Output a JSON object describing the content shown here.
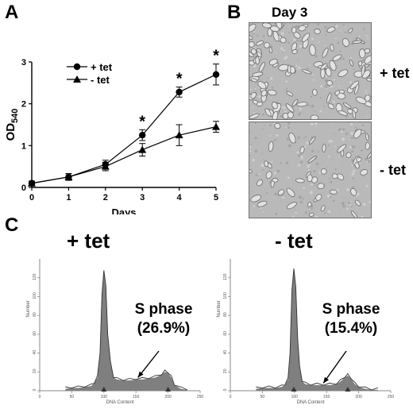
{
  "panels": {
    "a": {
      "letter": "A"
    },
    "b": {
      "letter": "B",
      "title": "Day 3",
      "top_label": "+ tet",
      "bottom_label": "- tet"
    },
    "c": {
      "letter": "C",
      "left_title": "+ tet",
      "right_title": "- tet"
    }
  },
  "chart_data": [
    {
      "type": "line",
      "xlabel": "Days",
      "ylabel": "OD",
      "ylabel_subscript": "540",
      "x": [
        0,
        1,
        2,
        3,
        4,
        5
      ],
      "xlim": [
        0,
        5
      ],
      "ylim": [
        0,
        3
      ],
      "xticks": [
        0,
        1,
        2,
        3,
        4,
        5
      ],
      "yticks": [
        0,
        1,
        2,
        3
      ],
      "grid": false,
      "legend_position": "top-left",
      "series": [
        {
          "name": "+ tet",
          "marker": "circle",
          "values": [
            0.1,
            0.25,
            0.55,
            1.25,
            2.28,
            2.7
          ],
          "errors": [
            0.05,
            0.08,
            0.1,
            0.13,
            0.12,
            0.25
          ]
        },
        {
          "name": "- tet",
          "marker": "triangle",
          "values": [
            0.1,
            0.25,
            0.5,
            0.9,
            1.25,
            1.45
          ],
          "errors": [
            0.05,
            0.08,
            0.1,
            0.15,
            0.25,
            0.13
          ]
        }
      ],
      "annotations": [
        {
          "x": 3,
          "text": "*"
        },
        {
          "x": 4,
          "text": "*"
        },
        {
          "x": 5,
          "text": "*"
        }
      ]
    },
    {
      "type": "area",
      "title": "+ tet",
      "xlabel": "DNA Content",
      "ylabel": "Number",
      "xlim": [
        0,
        250
      ],
      "ylim": [
        0,
        140
      ],
      "xticks": [
        0,
        50,
        100,
        150,
        200,
        250
      ],
      "yticks": [
        0,
        20,
        40,
        60,
        80,
        100,
        120
      ],
      "annotation": {
        "label": "S phase",
        "percent": "(26.9%)"
      },
      "x": [
        40,
        50,
        60,
        70,
        80,
        85,
        90,
        94,
        97,
        100,
        103,
        106,
        110,
        115,
        120,
        130,
        140,
        150,
        160,
        170,
        180,
        190,
        195,
        200,
        205,
        210,
        220,
        230
      ],
      "values": [
        2,
        3,
        3,
        4,
        5,
        8,
        14,
        40,
        100,
        128,
        110,
        60,
        30,
        14,
        12,
        11,
        11,
        12,
        12,
        13,
        14,
        17,
        20,
        19,
        14,
        6,
        2,
        1
      ],
      "g1_peak": 100,
      "g2_peak": 200
    },
    {
      "type": "area",
      "title": "- tet",
      "xlabel": "DNA Content",
      "ylabel": "Number",
      "xlim": [
        0,
        250
      ],
      "ylim": [
        0,
        140
      ],
      "xticks": [
        0,
        50,
        100,
        150,
        200,
        250
      ],
      "yticks": [
        0,
        20,
        40,
        60,
        80,
        100,
        120
      ],
      "annotation": {
        "label": "S phase",
        "percent": "(15.4%)"
      },
      "x": [
        40,
        50,
        60,
        70,
        80,
        85,
        90,
        93,
        96,
        99,
        102,
        105,
        108,
        112,
        117,
        125,
        135,
        145,
        155,
        165,
        172,
        178,
        183,
        188,
        194,
        200,
        210,
        220,
        230
      ],
      "values": [
        2,
        3,
        3,
        3,
        4,
        6,
        12,
        40,
        105,
        130,
        108,
        55,
        24,
        10,
        7,
        6,
        6,
        6,
        6,
        7,
        10,
        14,
        16,
        13,
        7,
        4,
        2,
        1,
        1
      ],
      "g1_peak": 99,
      "g2_peak": 183
    }
  ]
}
